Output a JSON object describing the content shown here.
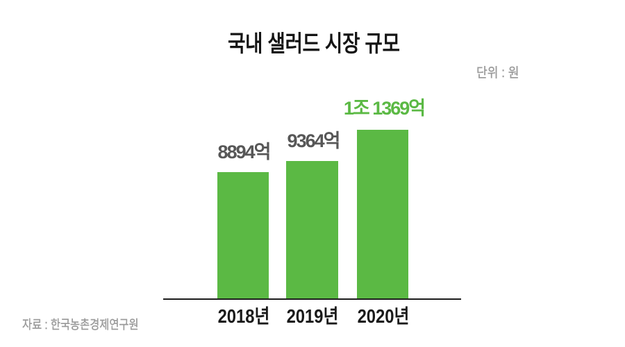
{
  "title": "국내 샐러드 시장 규모",
  "unit_label": "단위 : 원",
  "source_label": "자료 : 한국농촌경제연구원",
  "colors": {
    "bar_green": "#5bb944",
    "highlight_text_green": "#5bb944",
    "value_label_gray": "#575757",
    "axis_black": "#1c1c1c",
    "title_black": "#141414",
    "muted_gray": "#9a9a9a",
    "background": "#ffffff"
  },
  "chart_data": {
    "type": "bar",
    "title": "국내 샐러드 시장 규모",
    "unit": "원",
    "source": "한국농촌경제연구원",
    "categories": [
      "2018년",
      "2019년",
      "2020년"
    ],
    "values": [
      8894,
      9364,
      11369
    ],
    "value_unit": "억 원",
    "value_labels": [
      "8894억",
      "9364억",
      "1조 1369억"
    ],
    "highlight_index": 2,
    "grid": false,
    "legend": false,
    "ylim": [
      0,
      11369
    ]
  }
}
